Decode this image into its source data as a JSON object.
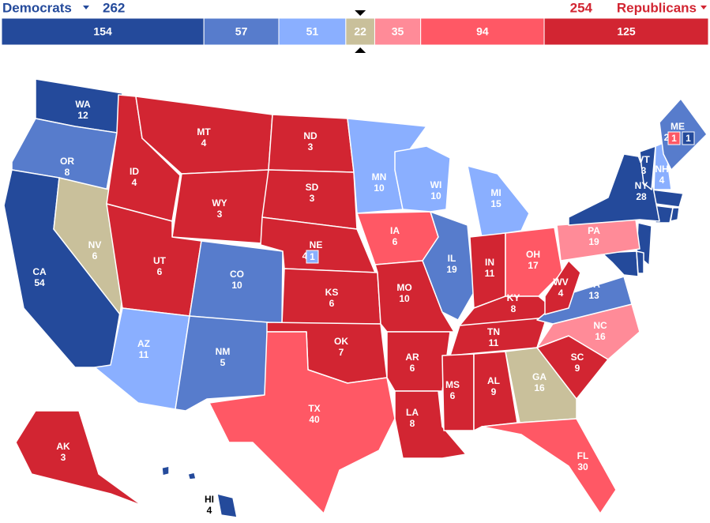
{
  "header": {
    "dem_label": "Democrats",
    "dem_total": 262,
    "rep_total": 254,
    "rep_label": "Republicans"
  },
  "bar": {
    "segments": [
      {
        "value": 154,
        "color": "#244a9b"
      },
      {
        "value": 57,
        "color": "#577ccc"
      },
      {
        "value": 51,
        "color": "#8aafff"
      },
      {
        "value": 22,
        "color": "#c9c09b"
      },
      {
        "value": 35,
        "color": "#ff8b98"
      },
      {
        "value": 94,
        "color": "#ff5865"
      },
      {
        "value": 125,
        "color": "#d22532"
      }
    ]
  },
  "map": {
    "states": [
      {
        "name": "WA",
        "ev": 12,
        "color": "#244a9b"
      },
      {
        "name": "OR",
        "ev": 8,
        "color": "#577ccc"
      },
      {
        "name": "CA",
        "ev": 54,
        "color": "#244a9b"
      },
      {
        "name": "NV",
        "ev": 6,
        "color": "#c9c09b"
      },
      {
        "name": "ID",
        "ev": 4,
        "color": "#d22532"
      },
      {
        "name": "MT",
        "ev": 4,
        "color": "#d22532"
      },
      {
        "name": "WY",
        "ev": 3,
        "color": "#d22532"
      },
      {
        "name": "UT",
        "ev": 6,
        "color": "#d22532"
      },
      {
        "name": "AZ",
        "ev": 11,
        "color": "#8aafff"
      },
      {
        "name": "CO",
        "ev": 10,
        "color": "#577ccc"
      },
      {
        "name": "NM",
        "ev": 5,
        "color": "#577ccc"
      },
      {
        "name": "ND",
        "ev": 3,
        "color": "#d22532"
      },
      {
        "name": "SD",
        "ev": 3,
        "color": "#d22532"
      },
      {
        "name": "NE",
        "ev": 4,
        "color": "#d22532"
      },
      {
        "name": "KS",
        "ev": 6,
        "color": "#d22532"
      },
      {
        "name": "OK",
        "ev": 7,
        "color": "#d22532"
      },
      {
        "name": "TX",
        "ev": 40,
        "color": "#ff5865"
      },
      {
        "name": "MN",
        "ev": 10,
        "color": "#8aafff"
      },
      {
        "name": "IA",
        "ev": 6,
        "color": "#ff5865"
      },
      {
        "name": "MO",
        "ev": 10,
        "color": "#d22532"
      },
      {
        "name": "AR",
        "ev": 6,
        "color": "#d22532"
      },
      {
        "name": "LA",
        "ev": 8,
        "color": "#d22532"
      },
      {
        "name": "WI",
        "ev": 10,
        "color": "#8aafff"
      },
      {
        "name": "IL",
        "ev": 19,
        "color": "#577ccc"
      },
      {
        "name": "MI",
        "ev": 15,
        "color": "#8aafff"
      },
      {
        "name": "IN",
        "ev": 11,
        "color": "#d22532"
      },
      {
        "name": "OH",
        "ev": 17,
        "color": "#ff5865"
      },
      {
        "name": "KY",
        "ev": 8,
        "color": "#d22532"
      },
      {
        "name": "TN",
        "ev": 11,
        "color": "#d22532"
      },
      {
        "name": "MS",
        "ev": 6,
        "color": "#d22532"
      },
      {
        "name": "AL",
        "ev": 9,
        "color": "#d22532"
      },
      {
        "name": "GA",
        "ev": 16,
        "color": "#c9c09b"
      },
      {
        "name": "FL",
        "ev": 30,
        "color": "#ff5865"
      },
      {
        "name": "SC",
        "ev": 9,
        "color": "#d22532"
      },
      {
        "name": "NC",
        "ev": 16,
        "color": "#ff8b98"
      },
      {
        "name": "VA",
        "ev": 13,
        "color": "#577ccc"
      },
      {
        "name": "WV",
        "ev": 4,
        "color": "#d22532"
      },
      {
        "name": "PA",
        "ev": 19,
        "color": "#ff8b98"
      },
      {
        "name": "NY",
        "ev": 28,
        "color": "#244a9b"
      },
      {
        "name": "VT",
        "ev": 3,
        "color": "#244a9b"
      },
      {
        "name": "NH",
        "ev": 4,
        "color": "#8aafff"
      },
      {
        "name": "ME",
        "ev": 2,
        "color": "#577ccc"
      },
      {
        "name": "AK",
        "ev": 3,
        "color": "#d22532"
      },
      {
        "name": "HI",
        "ev": 4,
        "color": "#244a9b"
      }
    ],
    "districts": [
      {
        "state": "NE",
        "ev": 1,
        "color": "#8aafff"
      },
      {
        "state": "ME",
        "ev": 1,
        "color": "#ff5865"
      },
      {
        "state": "ME",
        "ev": 1,
        "color": "#244a9b"
      }
    ]
  }
}
